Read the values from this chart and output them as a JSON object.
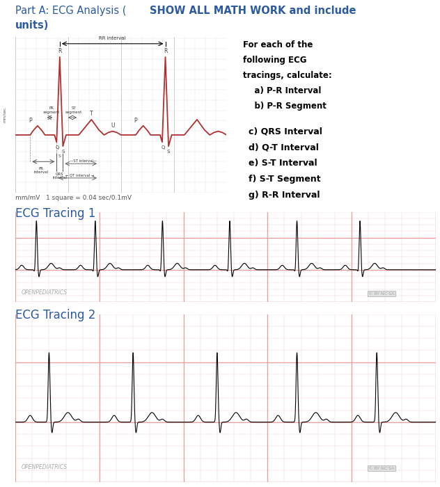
{
  "title_part1": "Part A: ECG Analysis (",
  "title_part2": "SHOW ALL MATH WORK and include",
  "title_part3": "units)",
  "title_color": "#2c5aa0",
  "ecg1_label": "ECG Tracing 1",
  "ecg2_label": "ECG Tracing 2",
  "label_color": "#2c5aa0",
  "scale_text": "mm/mV   1 square = 0.04 sec/0.1mV",
  "ecg_bg": "#fde8e8",
  "grid_major_color": "#e8a0a0",
  "grid_minor_color": "#f4d0d0",
  "diag_bg": "#f0f0f0",
  "diag_grid_major": "#cccccc",
  "diag_grid_minor": "#e0e0e0",
  "ecg_line_color": "#b03030",
  "box_lines_in": [
    [
      "For each of the",
      true
    ],
    [
      "following ECG",
      true
    ],
    [
      "tracings, calculate:",
      true
    ],
    [
      "    a) P-R Interval",
      true
    ],
    [
      "    b) P-R Segment",
      true
    ]
  ],
  "box_lines_out": [
    [
      "c) QRS Interval",
      true
    ],
    [
      "d) Q-T Interval",
      true
    ],
    [
      "e) S-T Interval",
      true
    ],
    [
      "f) S-T Segment",
      true
    ],
    [
      "g) R-R Interval",
      true
    ]
  ]
}
